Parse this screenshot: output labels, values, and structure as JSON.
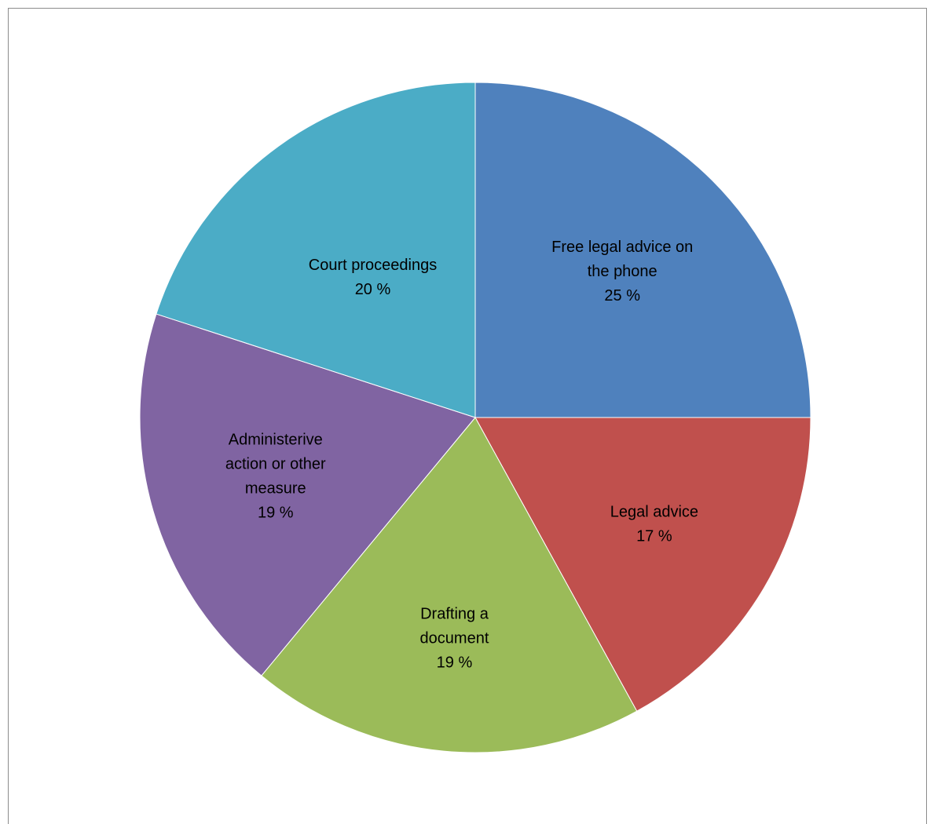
{
  "chart_data": {
    "type": "pie",
    "title": "",
    "start_angle_deg": 0,
    "direction": "clockwise",
    "legend": "none",
    "slices": [
      {
        "label": "Free legal advice on the phone",
        "label_lines": [
          "Free legal advice on",
          "the phone"
        ],
        "value": 25,
        "value_label": "25 %",
        "color": "#4F81BD"
      },
      {
        "label": "Legal advice",
        "label_lines": [
          "Legal advice"
        ],
        "value": 17,
        "value_label": "17 %",
        "color": "#C0504D"
      },
      {
        "label": "Drafting a document",
        "label_lines": [
          "Drafting a",
          "document"
        ],
        "value": 19,
        "value_label": "19 %",
        "color": "#9BBB59"
      },
      {
        "label": "Administerive action or other measure",
        "label_lines": [
          "Administerive",
          "action or other",
          "measure"
        ],
        "value": 19,
        "value_label": "19 %",
        "color": "#8064A2"
      },
      {
        "label": "Court proceedings",
        "label_lines": [
          "Court proceedings"
        ],
        "value": 20,
        "value_label": "20 %",
        "color": "#4BACC6"
      }
    ]
  }
}
